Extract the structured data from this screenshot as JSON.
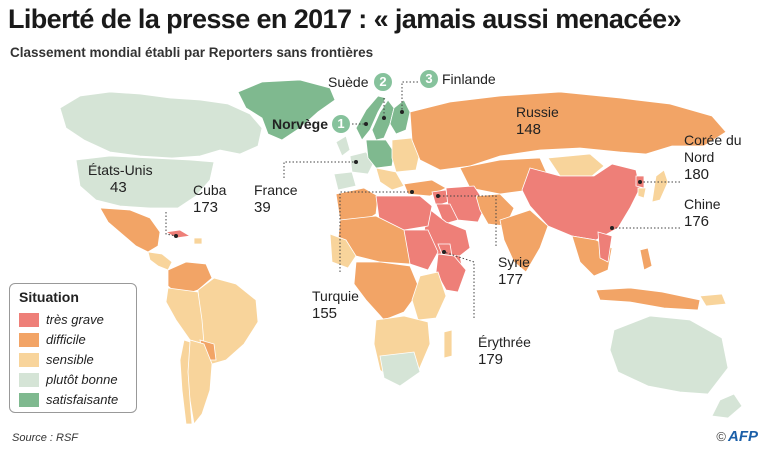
{
  "title": "Liberté de la presse en 2017 : « jamais aussi menacée»",
  "subtitle": "Classement mondial établi par Reporters sans frontières",
  "colors": {
    "tres_grave": "#ee7f78",
    "difficile": "#f2a466",
    "sensible": "#f8d49b",
    "plutot_bonne": "#d5e4d6",
    "satisfaisante": "#7fb98f",
    "badge": "#86c29c",
    "ocean": "#ffffff"
  },
  "legend": {
    "title": "Situation",
    "items": [
      {
        "label": "très grave",
        "color": "#ee7f78"
      },
      {
        "label": "difficile",
        "color": "#f2a466"
      },
      {
        "label": "sensible",
        "color": "#f8d49b"
      },
      {
        "label": "plutôt bonne",
        "color": "#d5e4d6"
      },
      {
        "label": "satisfaisante",
        "color": "#7fb98f"
      }
    ]
  },
  "top_ranks": [
    {
      "rank": "1",
      "country": "Norvège"
    },
    {
      "rank": "2",
      "country": "Suède"
    },
    {
      "rank": "3",
      "country": "Finlande"
    }
  ],
  "countries": [
    {
      "name": "États-Unis",
      "rank": "43"
    },
    {
      "name": "Cuba",
      "rank": "173"
    },
    {
      "name": "France",
      "rank": "39"
    },
    {
      "name": "Russie",
      "rank": "148"
    },
    {
      "name": "Corée du Nord",
      "rank": "180"
    },
    {
      "name": "Chine",
      "rank": "176"
    },
    {
      "name": "Syrie",
      "rank": "177"
    },
    {
      "name": "Turquie",
      "rank": "155"
    },
    {
      "name": "Érythrée",
      "rank": "179"
    }
  ],
  "source": "Source : RSF",
  "credit": "AFP",
  "credit_symbol": "©"
}
